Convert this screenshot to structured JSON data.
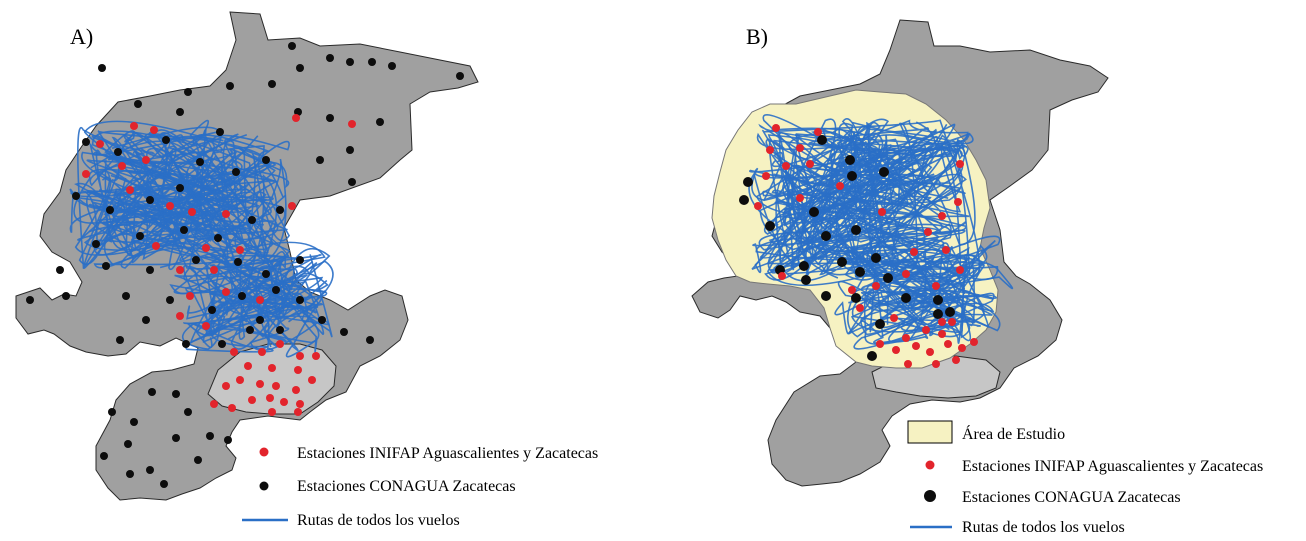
{
  "colors": {
    "land": "#a0a0a0",
    "land_light": "#c6c6c6",
    "border": "#2a2a2a",
    "study_area": "#f6f2c2",
    "inifap": "#e2242c",
    "conagua": "#0d0d0d",
    "route": "#2a6fc6"
  },
  "panel_a": {
    "label": "A)",
    "legend": {
      "inifap": "Estaciones INIFAP Aguascalientes y Zacatecas",
      "conagua": "Estaciones CONAGUA Zacatecas",
      "routes": "Rutas de todos los vuelos"
    }
  },
  "panel_b": {
    "label": "B)",
    "legend": {
      "study": "Área de Estudio",
      "inifap": "Estaciones INIFAP Aguascalientes y Zacatecas",
      "conagua": "Estaciones CONAGUA Zacatecas",
      "routes": "Rutas de todos los vuelos"
    }
  }
}
